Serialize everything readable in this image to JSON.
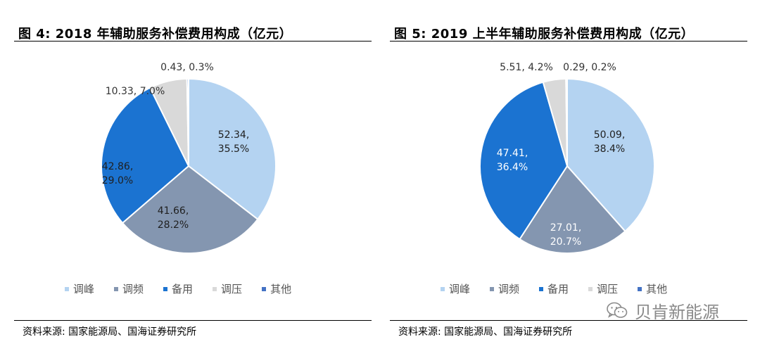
{
  "chart_data": [
    {
      "type": "pie",
      "title": "图 4:  2018 年辅助服务补偿费用构成（亿元）",
      "slices": [
        {
          "name": "调峰",
          "value": 52.34,
          "label_value": "52.34,",
          "label_pct": "35.5%",
          "color": "#b4d3f1",
          "text_color": "#1f1f1f"
        },
        {
          "name": "调频",
          "value": 41.66,
          "label_value": "41.66,",
          "label_pct": "28.2%",
          "color": "#8496b0",
          "text_color": "#1f1f1f"
        },
        {
          "name": "备用",
          "value": 42.86,
          "label_value": "42.86,",
          "label_pct": "29.0%",
          "color": "#1b73d1",
          "text_color": "#1f1f1f"
        },
        {
          "name": "调压",
          "value": 10.33,
          "label_value": "10.33,",
          "label_pct": "7.0%",
          "color": "#d9d9d9",
          "text_color": "#333333"
        },
        {
          "name": "其他",
          "value": 0.43,
          "label_value": "0.43,",
          "label_pct": "0.3%",
          "color": "#4472c4",
          "text_color": "#333333"
        }
      ],
      "legend": [
        "调峰",
        "调频",
        "备用",
        "调压",
        "其他"
      ],
      "source": "资料来源:  国家能源局、国海证券研究所"
    },
    {
      "type": "pie",
      "title": "图 5:  2019 上半年辅助服务补偿费用构成（亿元）",
      "slices": [
        {
          "name": "调峰",
          "value": 50.09,
          "label_value": "50.09,",
          "label_pct": "38.4%",
          "color": "#b4d3f1",
          "text_color": "#1f1f1f"
        },
        {
          "name": "调频",
          "value": 27.01,
          "label_value": "27.01,",
          "label_pct": "20.7%",
          "color": "#8496b0",
          "text_color": "#ffffff"
        },
        {
          "name": "备用",
          "value": 47.41,
          "label_value": "47.41,",
          "label_pct": "36.4%",
          "color": "#1b73d1",
          "text_color": "#ffffff"
        },
        {
          "name": "调压",
          "value": 5.51,
          "label_value": "5.51,",
          "label_pct": "4.2%",
          "color": "#d9d9d9",
          "text_color": "#333333"
        },
        {
          "name": "其他",
          "value": 0.29,
          "label_value": "0.29,",
          "label_pct": "0.2%",
          "color": "#4472c4",
          "text_color": "#333333"
        }
      ],
      "legend": [
        "调峰",
        "调频",
        "备用",
        "调压",
        "其他"
      ],
      "source": "资料来源:  国家能源局、国海证券研究所"
    }
  ],
  "watermark": {
    "text": "贝肯新能源",
    "icon": "wechat-icon"
  }
}
